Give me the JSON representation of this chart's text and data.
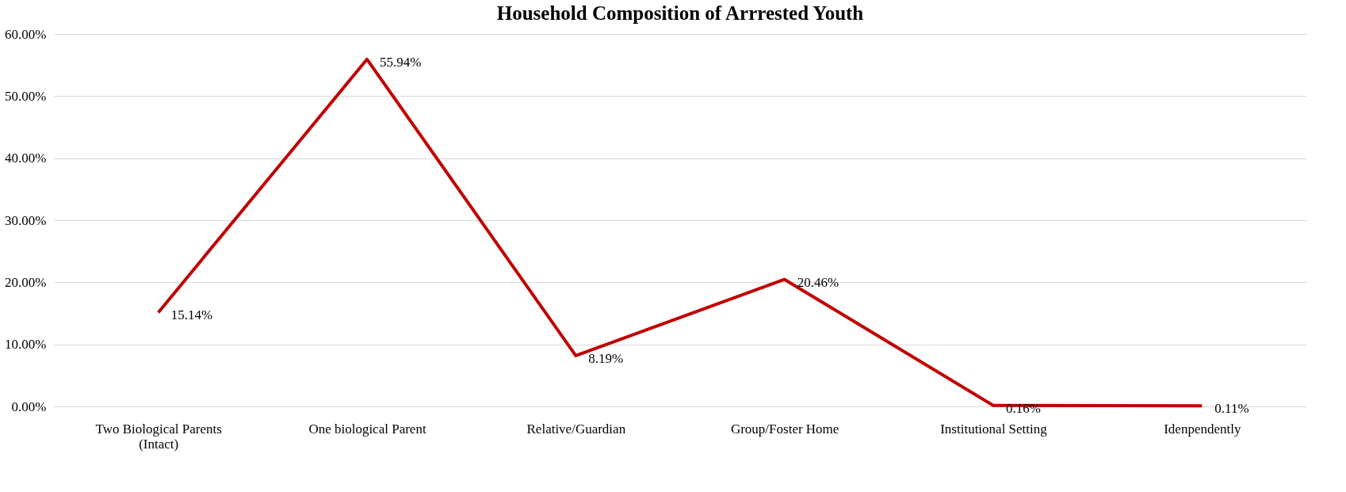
{
  "chart_data": {
    "type": "line",
    "title": "Household Composition of Arrrested Youth",
    "categories": [
      "Two Biological Parents\n(Intact)",
      "One biological Parent",
      "Relative/Guardian",
      "Group/Foster Home",
      "Institutional Setting",
      "Idenpendently"
    ],
    "series": [
      {
        "color": "#c00000",
        "values": [
          15.14,
          55.94,
          8.19,
          20.46,
          0.16,
          0.11
        ],
        "value_labels": [
          "15.14%",
          "55.94%",
          "8.19%",
          "20.46%",
          "0.16%",
          "0.11%"
        ]
      }
    ],
    "ylim": [
      0,
      60
    ],
    "yticks": [
      {
        "value": 0,
        "label": "0.00%"
      },
      {
        "value": 10,
        "label": "10.00%"
      },
      {
        "value": 20,
        "label": "20.00%"
      },
      {
        "value": 30,
        "label": "30.00%"
      },
      {
        "value": 40,
        "label": "40.00%"
      },
      {
        "value": 50,
        "label": "50.00%"
      },
      {
        "value": 60,
        "label": "60.00%"
      }
    ],
    "grid": "y",
    "marker": "none",
    "line_style": "solid"
  }
}
